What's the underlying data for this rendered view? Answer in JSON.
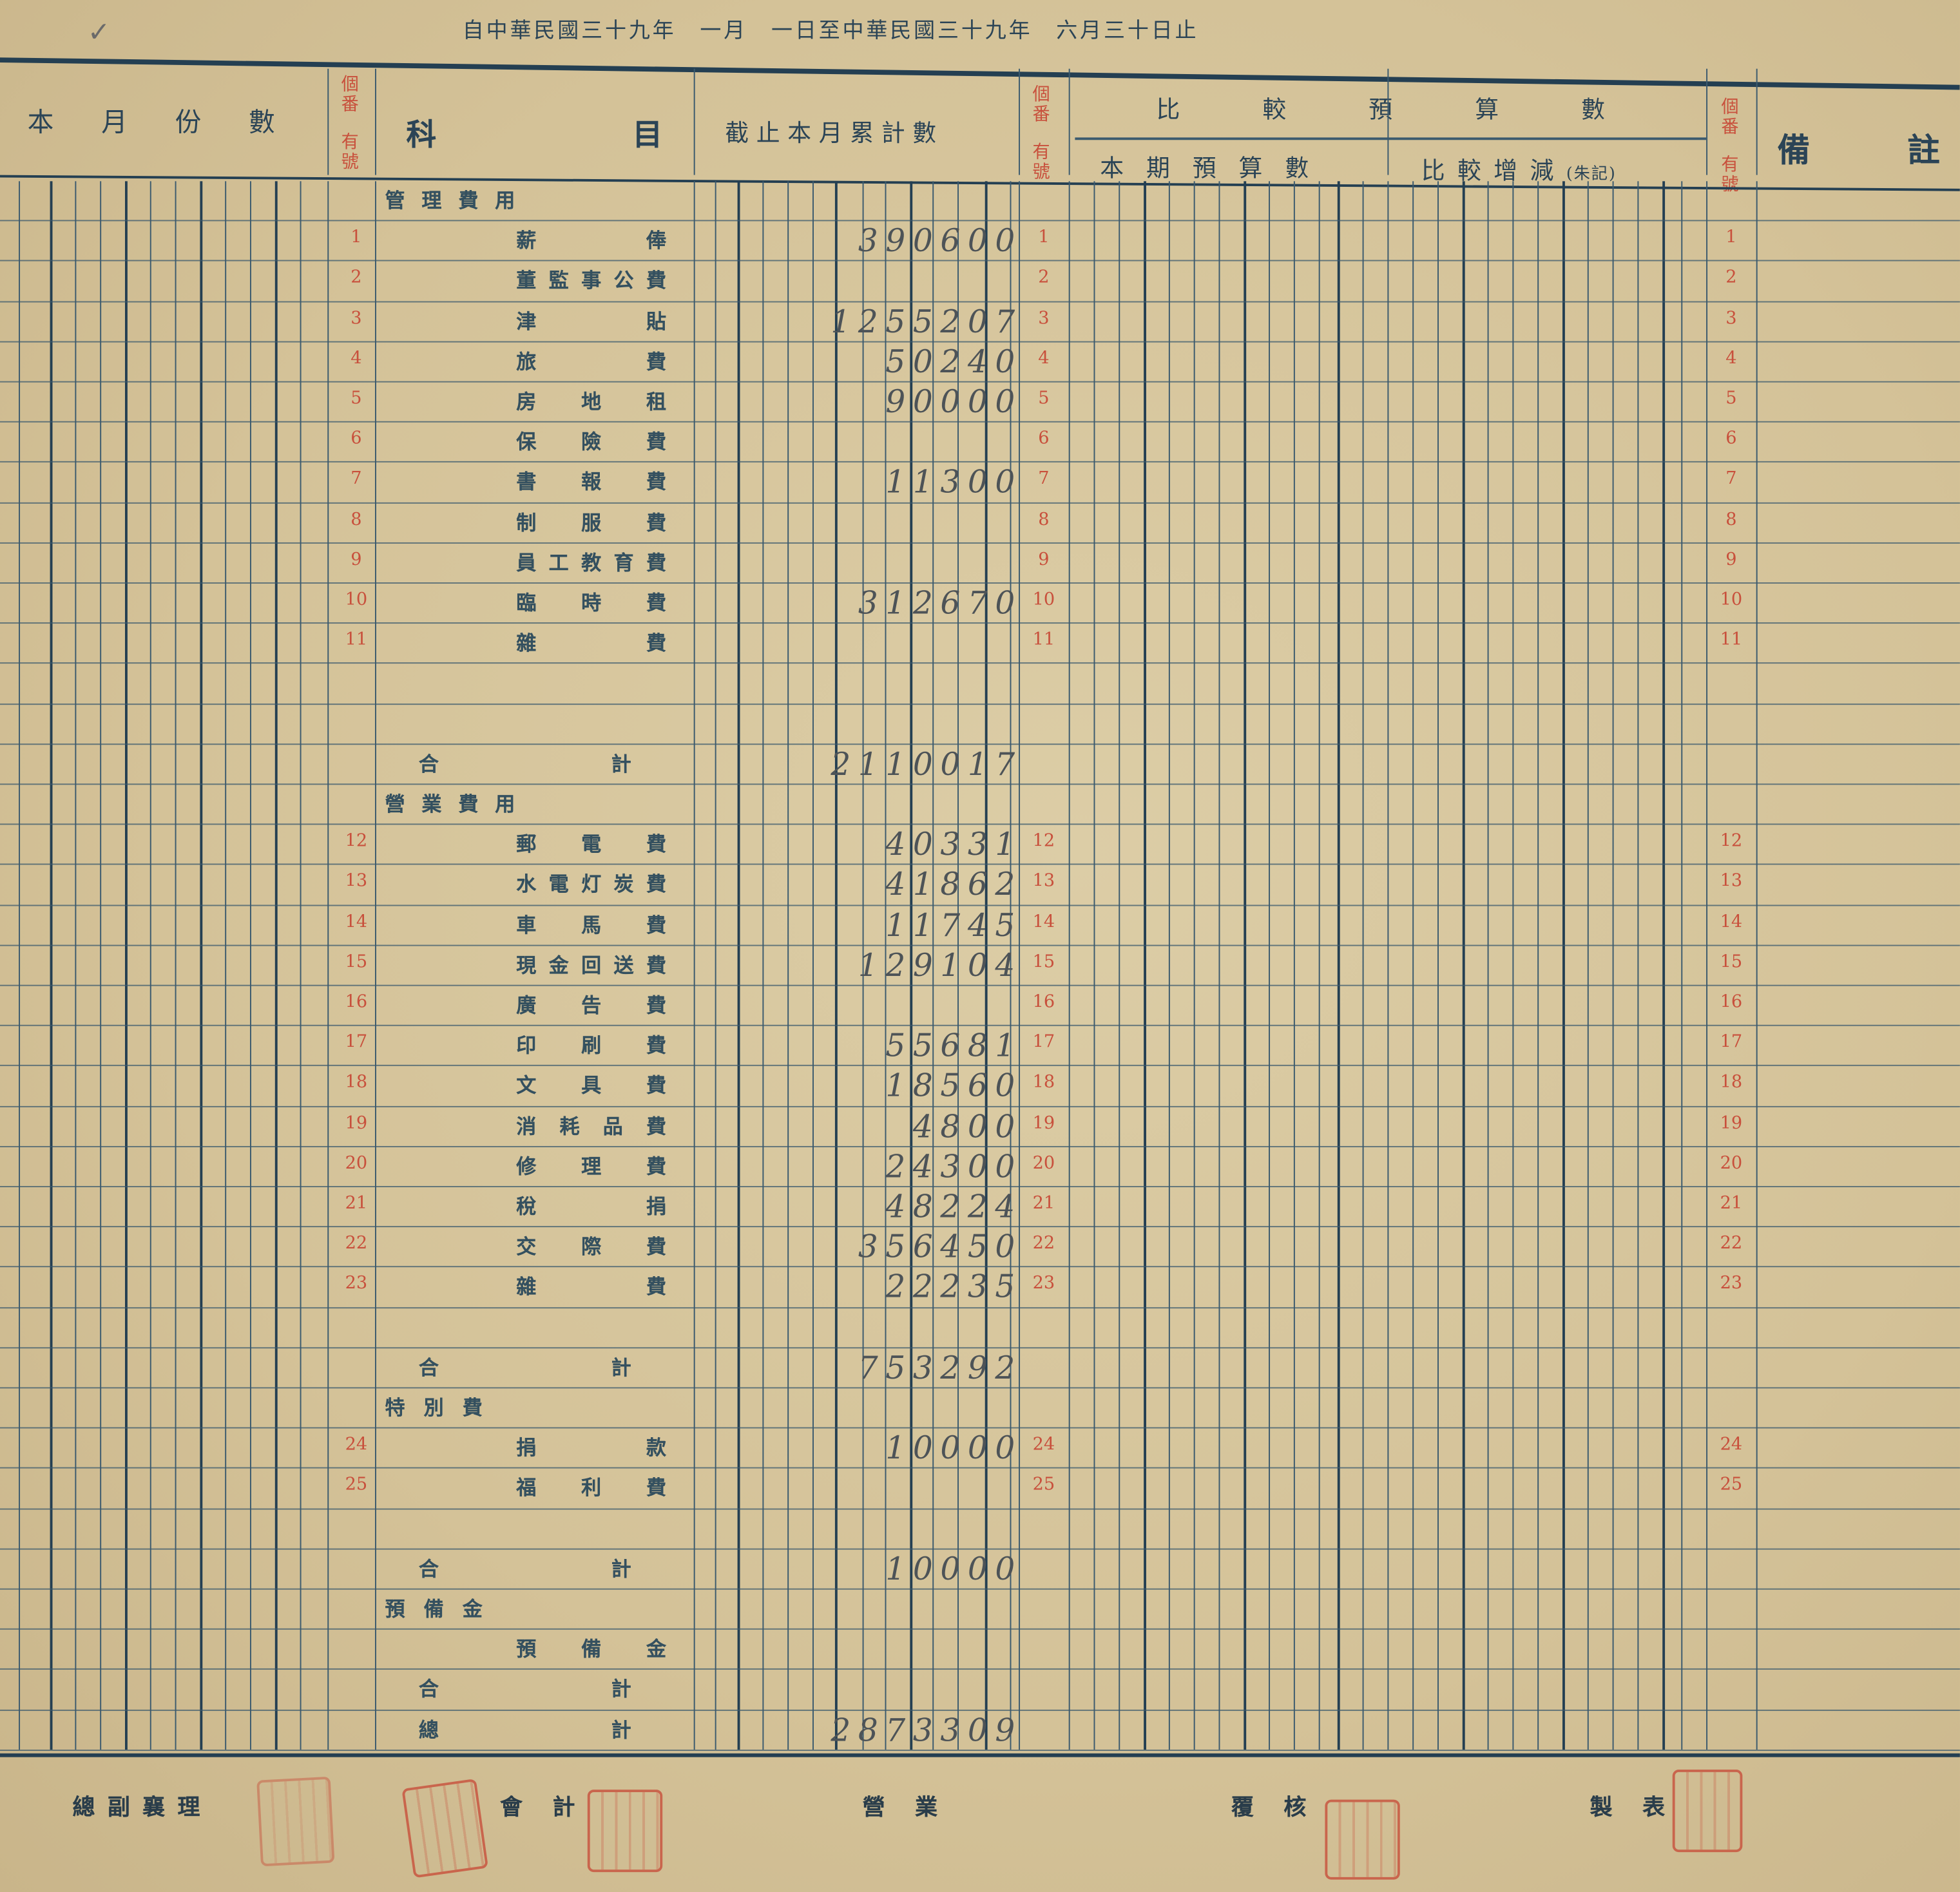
{
  "document": {
    "period_title": "自中華民國三十九年　一月　一日至中華民國三十九年　六月三十日止",
    "headers": {
      "monthly_amount": "本月份數",
      "item_no": [
        "個番",
        "有號"
      ],
      "account": [
        "科",
        "目"
      ],
      "cumulative": "截止本月累計數",
      "budget_comparison": "比較預算數",
      "period_budget": "本期預算數",
      "difference": "比較增減",
      "difference_note": "(朱記)",
      "remarks": [
        "備",
        "註"
      ]
    },
    "rows": [
      {
        "kind": "heading",
        "name": "管理費用"
      },
      {
        "kind": "item",
        "no": "1",
        "name": "薪俸",
        "amount": "390600"
      },
      {
        "kind": "item",
        "no": "2",
        "name": "董監事公費",
        "amount": ""
      },
      {
        "kind": "item",
        "no": "3",
        "name": "津貼",
        "amount": "1255207"
      },
      {
        "kind": "item",
        "no": "4",
        "name": "旅費",
        "amount": "50240"
      },
      {
        "kind": "item",
        "no": "5",
        "name": "房地租",
        "amount": "90000"
      },
      {
        "kind": "item",
        "no": "6",
        "name": "保險費",
        "amount": ""
      },
      {
        "kind": "item",
        "no": "7",
        "name": "書報費",
        "amount": "11300"
      },
      {
        "kind": "item",
        "no": "8",
        "name": "制服費",
        "amount": ""
      },
      {
        "kind": "item",
        "no": "9",
        "name": "員工教育費",
        "amount": ""
      },
      {
        "kind": "item",
        "no": "10",
        "name": "臨時費",
        "amount": "312670"
      },
      {
        "kind": "item",
        "no": "11",
        "name": "雜費",
        "amount": ""
      },
      {
        "kind": "blank"
      },
      {
        "kind": "blank"
      },
      {
        "kind": "total",
        "name": "合計",
        "amount": "2110017"
      },
      {
        "kind": "heading",
        "name": "營業費用"
      },
      {
        "kind": "item",
        "no": "12",
        "name": "郵電費",
        "amount": "40331"
      },
      {
        "kind": "item",
        "no": "13",
        "name": "水電灯炭費",
        "amount": "41862"
      },
      {
        "kind": "item",
        "no": "14",
        "name": "車馬費",
        "amount": "11745"
      },
      {
        "kind": "item",
        "no": "15",
        "name": "現金回送費",
        "amount": "129104"
      },
      {
        "kind": "item",
        "no": "16",
        "name": "廣告費",
        "amount": ""
      },
      {
        "kind": "item",
        "no": "17",
        "name": "印刷費",
        "amount": "55681"
      },
      {
        "kind": "item",
        "no": "18",
        "name": "文具費",
        "amount": "18560"
      },
      {
        "kind": "item",
        "no": "19",
        "name": "消耗品費",
        "amount": "4800"
      },
      {
        "kind": "item",
        "no": "20",
        "name": "修理費",
        "amount": "24300"
      },
      {
        "kind": "item",
        "no": "21",
        "name": "稅捐",
        "amount": "48224"
      },
      {
        "kind": "item",
        "no": "22",
        "name": "交際費",
        "amount": "356450"
      },
      {
        "kind": "item",
        "no": "23",
        "name": "雜費",
        "amount": "22235"
      },
      {
        "kind": "blank"
      },
      {
        "kind": "total",
        "name": "合計",
        "amount": "753292"
      },
      {
        "kind": "heading",
        "name": "特別費"
      },
      {
        "kind": "item",
        "no": "24",
        "name": "捐款",
        "amount": "10000"
      },
      {
        "kind": "item",
        "no": "25",
        "name": "福利費",
        "amount": ""
      },
      {
        "kind": "blank"
      },
      {
        "kind": "total",
        "name": "合計",
        "amount": "10000"
      },
      {
        "kind": "heading",
        "name": "預備金"
      },
      {
        "kind": "item",
        "no": "",
        "name": "預備金",
        "amount": ""
      },
      {
        "kind": "total",
        "name": "合計",
        "amount": ""
      },
      {
        "kind": "total",
        "name": "總計",
        "amount": "2873309"
      }
    ],
    "signatures": [
      "總副襄理",
      "會計",
      "營業",
      "覆核",
      "製表"
    ],
    "colors": {
      "paper": "#d6c59c",
      "ink": "#2b4456",
      "red_ink": "#c8503c",
      "pencil": "#4d5357"
    }
  }
}
